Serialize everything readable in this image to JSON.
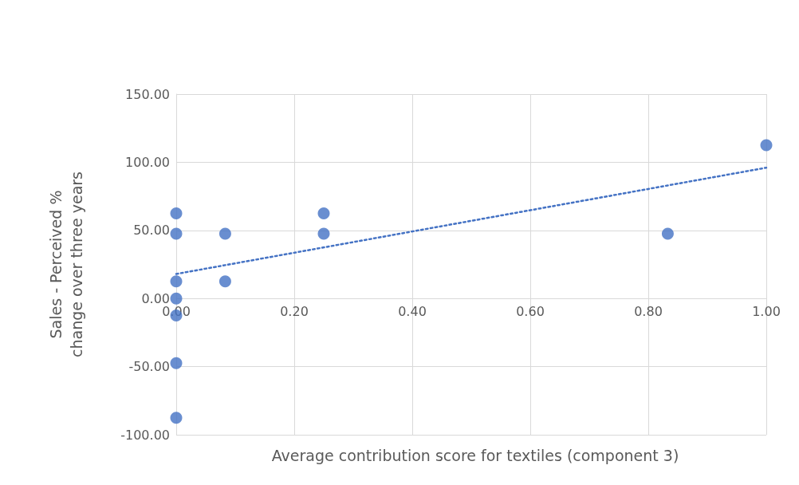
{
  "chart_data": {
    "type": "scatter",
    "xlabel": "Average contribution score for textiles (component 3)",
    "ylabel": "Sales - Perceived % change over three years",
    "series": [
      {
        "color": "#4472c4",
        "marker": "circle",
        "x": [
          0,
          0,
          0,
          0,
          0,
          0,
          0,
          0.083,
          0.083,
          0.25,
          0.25,
          0.833,
          1
        ],
        "values": [
          62.5,
          47.5,
          12.5,
          0,
          -12.5,
          -47.5,
          -87.5,
          47.5,
          12.5,
          62.5,
          47.5,
          47.5,
          112.5
        ]
      },
      {
        "type": "line",
        "color": "#4472c4",
        "marker": "none",
        "line_style": "dotted",
        "x": [
          0,
          1
        ],
        "values": [
          18,
          96
        ]
      }
    ],
    "xlim": [
      0,
      1
    ],
    "ylim": [
      -100,
      150
    ],
    "xticks": [
      {
        "value": 0,
        "label": "0.00"
      },
      {
        "value": 0.2,
        "label": "0.20"
      },
      {
        "value": 0.4,
        "label": "0.40"
      },
      {
        "value": 0.6,
        "label": "0.60"
      },
      {
        "value": 0.8,
        "label": "0.80"
      },
      {
        "value": 1,
        "label": "1.00"
      }
    ],
    "yticks": [
      {
        "value": -100,
        "label": "-100.00"
      },
      {
        "value": -50,
        "label": "-50.00"
      },
      {
        "value": 0,
        "label": "0.00"
      },
      {
        "value": 50,
        "label": "50.00"
      },
      {
        "value": 100,
        "label": "100.00"
      },
      {
        "value": 150,
        "label": "150.00"
      }
    ],
    "grid": true
  }
}
